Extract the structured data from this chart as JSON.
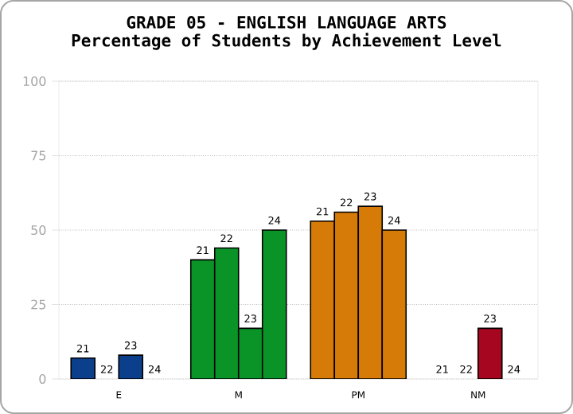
{
  "chart_data": {
    "type": "bar",
    "title": "GRADE 05 - ENGLISH LANGUAGE ARTS",
    "subtitle": "Percentage of Students by Achievement Level",
    "categories": [
      "E",
      "M",
      "PM",
      "NM"
    ],
    "series": [
      {
        "name": "21",
        "values": [
          7,
          40,
          53,
          0
        ],
        "colors": [
          "#0b3f8c",
          "#0a9428",
          "#d77b08",
          "#a6061f"
        ]
      },
      {
        "name": "22",
        "values": [
          0,
          44,
          56,
          0
        ],
        "colors": [
          "#0b3f8c",
          "#0a9428",
          "#d77b08",
          "#a6061f"
        ]
      },
      {
        "name": "23",
        "values": [
          8,
          17,
          58,
          17
        ],
        "colors": [
          "#0b3f8c",
          "#0a9428",
          "#d77b08",
          "#a6061f"
        ]
      },
      {
        "name": "24",
        "values": [
          0,
          50,
          50,
          0
        ],
        "colors": [
          "#0b3f8c",
          "#0a9428",
          "#d77b08",
          "#a6061f"
        ]
      }
    ],
    "ylim": [
      0,
      100
    ],
    "yticks": [
      0,
      25,
      50,
      75,
      100
    ],
    "grid": "y"
  }
}
